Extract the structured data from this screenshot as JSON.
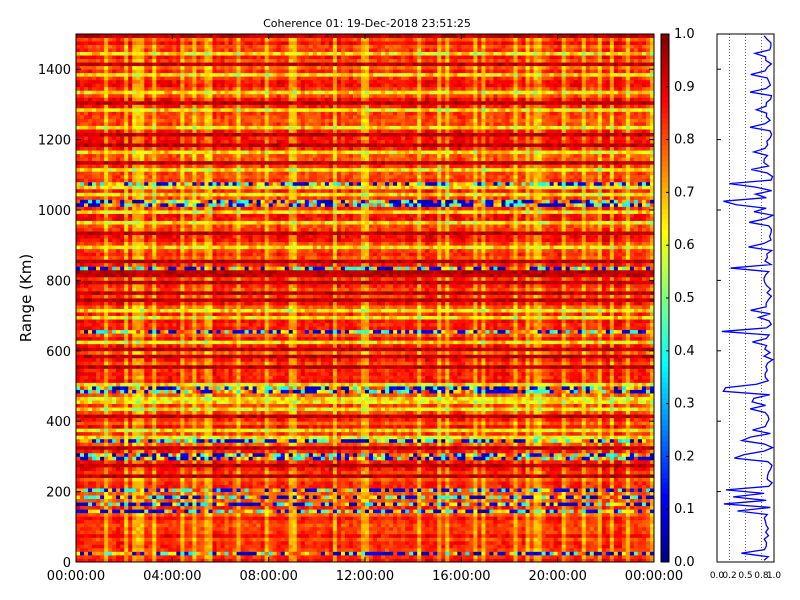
{
  "chart_data": {
    "type": "heatmap",
    "title": "Coherence 01: 19-Dec-2018 23:51:25",
    "ylabel": "Range (Km)",
    "xlabel": "",
    "x_ticks": [
      "00:00:00",
      "04:00:00",
      "08:00:00",
      "12:00:00",
      "16:00:00",
      "20:00:00",
      "00:00:00"
    ],
    "x_range_hours": [
      0,
      24
    ],
    "y_ticks": [
      0,
      200,
      400,
      600,
      800,
      1000,
      1200,
      1400
    ],
    "ylim": [
      0,
      1500
    ],
    "colorbar": {
      "ticks": [
        "0.0",
        "0.1",
        "0.2",
        "0.3",
        "0.4",
        "0.5",
        "0.6",
        "0.7",
        "0.8",
        "0.9",
        "1.0"
      ],
      "range": [
        0,
        1
      ],
      "colormap": "jet"
    },
    "profile": {
      "type": "line",
      "color": "#0000ff",
      "x_ticks": [
        "0.0",
        "0.2",
        "0.5",
        "0.8",
        "1.0"
      ],
      "xlim": [
        0,
        1
      ],
      "ylim": [
        0,
        1500
      ]
    },
    "low_coherence_ranges_km": [
      20,
      145,
      160,
      185,
      205,
      290,
      300,
      340,
      480,
      495,
      655,
      835,
      1015,
      1020,
      1075
    ],
    "mid_coherence_ranges_km": [
      355,
      375,
      430,
      450,
      465,
      505,
      620,
      690,
      710,
      890,
      960,
      990,
      1040,
      1060,
      1110,
      1165,
      1230,
      1280,
      1335,
      1380,
      1440
    ],
    "high_coherence_ranges_km": [
      240,
      270,
      320,
      410,
      550,
      580,
      600,
      740,
      760,
      795,
      810,
      820,
      855,
      935,
      1130,
      1185,
      1210,
      1300,
      1410,
      1490
    ]
  }
}
